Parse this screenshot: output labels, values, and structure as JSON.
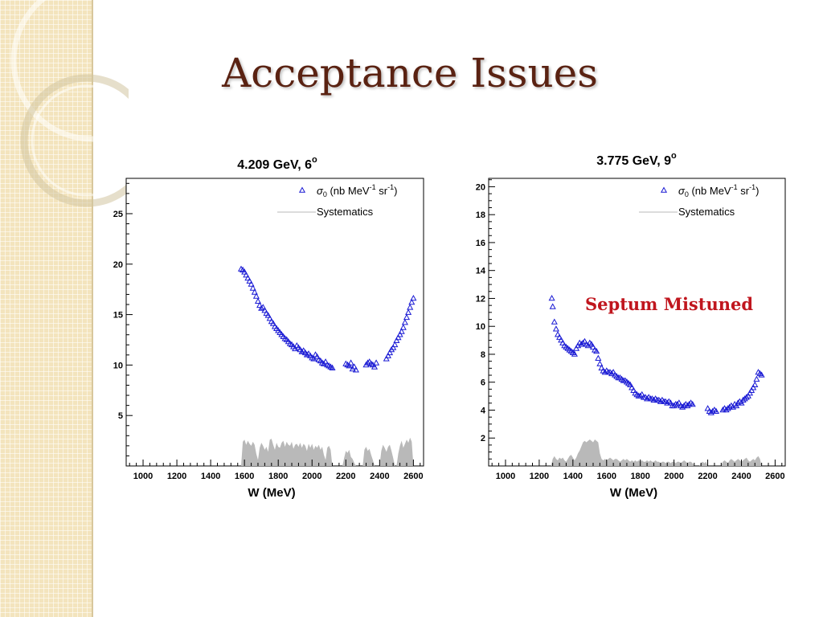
{
  "slide": {
    "title": "Acceptance Issues",
    "annotation": "Septum Mistuned"
  },
  "colors": {
    "title": "#5a2212",
    "annotation": "#c0161e",
    "data_marker": "#1a1ad4",
    "systematics_fill": "#b9b9b9",
    "strip": "#f3e4bd"
  },
  "chart_data": [
    {
      "type": "scatter",
      "title": "4.209 GeV, 6°",
      "title_text": "4.209 GeV, 6",
      "title_superscript": "o",
      "xlabel": "W (MeV)",
      "ylabel": "",
      "xlim": [
        900,
        2660
      ],
      "ylim": [
        0,
        28.5
      ],
      "xticks": [
        1000,
        1200,
        1400,
        1600,
        1800,
        2000,
        2200,
        2400,
        2600
      ],
      "yticks": [
        5,
        10,
        15,
        20,
        25
      ],
      "legend": {
        "placement": "top-right",
        "entries": [
          {
            "sigma": "σ",
            "sub": "0",
            "text": " (nb MeV",
            "sup1": "-1",
            "text2": " sr",
            "sup2": "-1",
            "text3": ")"
          },
          {
            "text": "Systematics"
          }
        ]
      },
      "series": [
        {
          "name": "σ0 (nb MeV-1 sr-1)",
          "marker": "open-triangle",
          "x": [
            1580,
            1590,
            1600,
            1610,
            1620,
            1630,
            1640,
            1650,
            1660,
            1670,
            1680,
            1690,
            1700,
            1710,
            1720,
            1730,
            1740,
            1750,
            1760,
            1770,
            1780,
            1790,
            1800,
            1810,
            1820,
            1830,
            1840,
            1850,
            1860,
            1870,
            1880,
            1890,
            1900,
            1910,
            1920,
            1930,
            1940,
            1950,
            1960,
            1970,
            1980,
            1990,
            2000,
            2010,
            2020,
            2030,
            2040,
            2050,
            2060,
            2070,
            2080,
            2090,
            2100,
            2110,
            2120,
            2200,
            2210,
            2220,
            2230,
            2240,
            2250,
            2260,
            2320,
            2330,
            2340,
            2350,
            2360,
            2370,
            2380,
            2440,
            2450,
            2460,
            2470,
            2480,
            2490,
            2500,
            2510,
            2520,
            2530,
            2540,
            2550,
            2560,
            2570,
            2580,
            2590,
            2600
          ],
          "y": [
            19.5,
            19.4,
            19.2,
            18.9,
            18.6,
            18.3,
            18.0,
            17.6,
            17.2,
            16.8,
            16.3,
            15.9,
            15.6,
            15.7,
            15.4,
            15.1,
            14.9,
            14.6,
            14.3,
            14.1,
            13.8,
            13.6,
            13.4,
            13.2,
            13.0,
            12.8,
            12.6,
            12.5,
            12.3,
            12.1,
            12.0,
            11.8,
            11.6,
            11.9,
            11.7,
            11.5,
            11.3,
            11.4,
            11.2,
            11.0,
            11.1,
            10.9,
            10.7,
            10.6,
            11.0,
            10.8,
            10.5,
            10.4,
            10.2,
            10.1,
            10.3,
            10.0,
            9.9,
            9.8,
            9.7,
            10.1,
            10.0,
            9.9,
            10.2,
            9.6,
            9.8,
            9.5,
            10.0,
            10.2,
            10.3,
            10.1,
            10.0,
            9.8,
            10.2,
            10.6,
            10.9,
            11.2,
            11.5,
            11.7,
            12.0,
            12.4,
            12.7,
            13.0,
            13.3,
            13.7,
            14.2,
            14.7,
            15.2,
            15.7,
            16.2,
            16.6
          ]
        },
        {
          "name": "Systematics",
          "type": "area",
          "x": [
            1580,
            1590,
            1600,
            1610,
            1620,
            1630,
            1640,
            1650,
            1660,
            1670,
            1680,
            1690,
            1700,
            1710,
            1720,
            1730,
            1740,
            1750,
            1760,
            1770,
            1780,
            1790,
            1800,
            1810,
            1820,
            1830,
            1840,
            1850,
            1860,
            1870,
            1880,
            1890,
            1900,
            1910,
            1920,
            1930,
            1940,
            1950,
            1960,
            1970,
            1980,
            1990,
            2000,
            2010,
            2020,
            2030,
            2040,
            2050,
            2060,
            2070,
            2080,
            2090,
            2100,
            2110,
            2120,
            2180,
            2190,
            2200,
            2210,
            2220,
            2230,
            2240,
            2250,
            2260,
            2300,
            2310,
            2320,
            2330,
            2340,
            2350,
            2360,
            2370,
            2380,
            2400,
            2410,
            2420,
            2430,
            2440,
            2450,
            2460,
            2470,
            2480,
            2490,
            2500,
            2510,
            2520,
            2530,
            2540,
            2550,
            2560,
            2570,
            2580,
            2590,
            2600
          ],
          "y": [
            0,
            2.4,
            2.6,
            2.1,
            2.5,
            2.2,
            2.0,
            2.4,
            2.1,
            1.2,
            0.6,
            1.8,
            2.3,
            2.0,
            1.6,
            1.9,
            1.4,
            2.6,
            2.7,
            2.1,
            1.6,
            2.3,
            1.9,
            1.8,
            2.3,
            2.5,
            1.9,
            2.4,
            2.1,
            2.0,
            2.4,
            1.7,
            2.1,
            2.2,
            1.9,
            2.3,
            1.8,
            2.2,
            2.0,
            1.5,
            2.2,
            1.8,
            2.2,
            1.6,
            2.0,
            1.8,
            2.1,
            1.6,
            1.9,
            1.1,
            0.6,
            1.8,
            2.0,
            1.6,
            0,
            0,
            0.8,
            1.5,
            1.3,
            1.6,
            0.9,
            0.7,
            0.3,
            0,
            0,
            1.6,
            1.9,
            1.5,
            1.7,
            1.1,
            0.6,
            0,
            0,
            0,
            1.5,
            2.1,
            1.8,
            1.4,
            1.9,
            2.1,
            1.5,
            0.8,
            0,
            0,
            1.2,
            2.0,
            2.5,
            1.8,
            2.2,
            2.6,
            2.3,
            2.8,
            2.4,
            0
          ]
        }
      ]
    },
    {
      "type": "scatter",
      "title": "3.775 GeV, 9°",
      "title_text": "3.775 GeV, 9",
      "title_superscript": "o",
      "xlabel": "W (MeV)",
      "ylabel": "",
      "xlim": [
        900,
        2660
      ],
      "ylim": [
        0,
        20.6
      ],
      "xticks": [
        1000,
        1200,
        1400,
        1600,
        1800,
        2000,
        2200,
        2400,
        2600
      ],
      "yticks": [
        2,
        4,
        6,
        8,
        10,
        12,
        14,
        16,
        18,
        20
      ],
      "legend": {
        "placement": "top-right",
        "entries": [
          {
            "sigma": "σ",
            "sub": "0",
            "text": " (nb MeV",
            "sup1": "-1",
            "text2": " sr",
            "sup2": "-1",
            "text3": ")"
          },
          {
            "text": "Systematics"
          }
        ]
      },
      "series": [
        {
          "name": "σ0 (nb MeV-1 sr-1)",
          "marker": "open-triangle",
          "x": [
            1275,
            1280,
            1290,
            1300,
            1310,
            1320,
            1330,
            1340,
            1350,
            1360,
            1370,
            1380,
            1390,
            1400,
            1410,
            1420,
            1430,
            1440,
            1450,
            1460,
            1470,
            1480,
            1490,
            1500,
            1510,
            1520,
            1530,
            1540,
            1550,
            1560,
            1570,
            1580,
            1590,
            1600,
            1610,
            1620,
            1630,
            1640,
            1650,
            1660,
            1670,
            1680,
            1690,
            1700,
            1710,
            1720,
            1730,
            1740,
            1750,
            1760,
            1770,
            1780,
            1790,
            1800,
            1810,
            1820,
            1830,
            1840,
            1850,
            1860,
            1870,
            1880,
            1890,
            1900,
            1910,
            1920,
            1930,
            1940,
            1950,
            1960,
            1970,
            1980,
            1990,
            2000,
            2010,
            2020,
            2030,
            2040,
            2050,
            2060,
            2070,
            2080,
            2090,
            2100,
            2110,
            2200,
            2210,
            2220,
            2230,
            2240,
            2250,
            2290,
            2300,
            2310,
            2320,
            2330,
            2340,
            2350,
            2360,
            2370,
            2380,
            2390,
            2400,
            2410,
            2420,
            2430,
            2440,
            2450,
            2460,
            2470,
            2480,
            2490,
            2500,
            2510,
            2520
          ],
          "y": [
            12.0,
            11.4,
            10.3,
            9.8,
            9.4,
            9.2,
            9.0,
            8.8,
            8.6,
            8.5,
            8.4,
            8.3,
            8.2,
            8.1,
            8.0,
            8.4,
            8.6,
            8.8,
            8.7,
            8.8,
            8.9,
            8.7,
            8.6,
            8.8,
            8.7,
            8.5,
            8.3,
            8.2,
            7.7,
            7.3,
            7.0,
            6.8,
            6.7,
            6.8,
            6.7,
            6.7,
            6.6,
            6.7,
            6.5,
            6.4,
            6.3,
            6.3,
            6.2,
            6.1,
            6.1,
            6.0,
            5.9,
            5.8,
            5.6,
            5.4,
            5.2,
            5.1,
            5.0,
            5.0,
            5.1,
            4.9,
            4.9,
            4.8,
            4.9,
            4.8,
            4.8,
            4.7,
            4.8,
            4.7,
            4.7,
            4.6,
            4.7,
            4.6,
            4.6,
            4.5,
            4.6,
            4.5,
            4.3,
            4.3,
            4.4,
            4.4,
            4.5,
            4.3,
            4.2,
            4.3,
            4.4,
            4.3,
            4.4,
            4.5,
            4.4,
            4.1,
            3.9,
            3.8,
            3.9,
            4.0,
            3.9,
            4.0,
            4.1,
            4.0,
            4.1,
            4.2,
            4.3,
            4.2,
            4.4,
            4.3,
            4.5,
            4.6,
            4.5,
            4.7,
            4.8,
            4.9,
            5.0,
            5.2,
            5.4,
            5.6,
            5.8,
            6.2,
            6.7,
            6.6,
            6.5
          ]
        },
        {
          "name": "Systematics",
          "type": "area",
          "x": [
            1270,
            1280,
            1290,
            1300,
            1310,
            1320,
            1330,
            1340,
            1350,
            1360,
            1370,
            1380,
            1390,
            1400,
            1410,
            1420,
            1430,
            1440,
            1450,
            1460,
            1470,
            1480,
            1490,
            1500,
            1510,
            1520,
            1530,
            1540,
            1550,
            1560,
            1570,
            1580,
            1590,
            1600,
            1610,
            1620,
            1630,
            1640,
            1650,
            1660,
            1670,
            1680,
            1690,
            1700,
            1710,
            1720,
            1730,
            1740,
            1750,
            1760,
            1770,
            1780,
            1790,
            1800,
            1810,
            1820,
            1830,
            1840,
            1850,
            1860,
            1870,
            1880,
            1890,
            1900,
            1910,
            1920,
            1930,
            1940,
            1950,
            1960,
            1970,
            1980,
            1990,
            2000,
            2010,
            2020,
            2030,
            2040,
            2050,
            2060,
            2070,
            2080,
            2090,
            2100,
            2110,
            2120,
            2150,
            2160,
            2170,
            2180,
            2190,
            2200,
            2280,
            2290,
            2300,
            2310,
            2320,
            2330,
            2340,
            2350,
            2360,
            2370,
            2380,
            2390,
            2400,
            2410,
            2420,
            2430,
            2440,
            2450,
            2460,
            2470,
            2480,
            2490,
            2500,
            2510,
            2520
          ],
          "y": [
            0,
            0.5,
            0.7,
            0.5,
            0.4,
            0.6,
            0.5,
            0.6,
            0.4,
            0.3,
            0.5,
            0.7,
            0.8,
            0.6,
            0.4,
            0.6,
            0.9,
            1.1,
            1.4,
            1.7,
            1.8,
            1.7,
            1.8,
            1.9,
            1.8,
            1.7,
            1.9,
            1.8,
            1.7,
            0.9,
            0.5,
            0.4,
            0.5,
            0.4,
            0.5,
            0.6,
            0.5,
            0.4,
            0.5,
            0.5,
            0.4,
            0.3,
            0.4,
            0.5,
            0.4,
            0.5,
            0.4,
            0.3,
            0.4,
            0.3,
            0.4,
            0.3,
            0.4,
            0.3,
            0.4,
            0.3,
            0.3,
            0.4,
            0.3,
            0.4,
            0.3,
            0.3,
            0.4,
            0.3,
            0.3,
            0.2,
            0.3,
            0.3,
            0.2,
            0.3,
            0.3,
            0.2,
            0.3,
            0.3,
            0.2,
            0.3,
            0.3,
            0.2,
            0.3,
            0.4,
            0.3,
            0.2,
            0.3,
            0.3,
            0.2,
            0,
            0,
            0.2,
            0.3,
            0.2,
            0.3,
            0,
            0,
            0.3,
            0.4,
            0.3,
            0.2,
            0.4,
            0.5,
            0.4,
            0.3,
            0.4,
            0.5,
            0.4,
            0.3,
            0.4,
            0.5,
            0.6,
            0.4,
            0.3,
            0.4,
            0.5,
            0.4,
            0.6,
            0.7,
            0.5,
            0
          ]
        }
      ]
    }
  ]
}
